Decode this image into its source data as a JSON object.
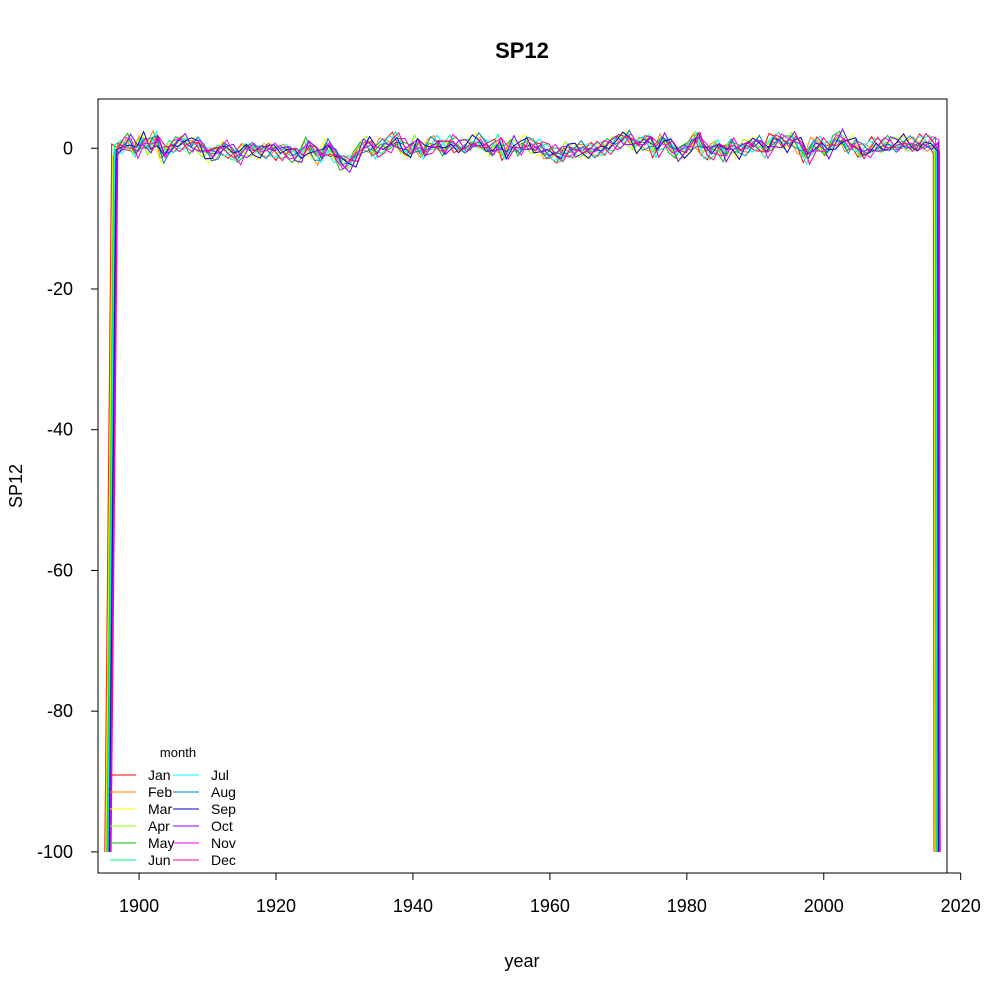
{
  "chart_data": {
    "type": "line",
    "title": "SP12",
    "xlabel": "year",
    "ylabel": "SP12",
    "xlim": [
      1894,
      2018
    ],
    "ylim": [
      -103,
      7
    ],
    "x_ticks": [
      1900,
      1920,
      1940,
      1960,
      1980,
      2000,
      2020
    ],
    "x_tick_labels": [
      "1900",
      "1920",
      "1940",
      "1960",
      "1980",
      "2000",
      "2020"
    ],
    "y_ticks": [
      0,
      -20,
      -40,
      -60,
      -80,
      -100
    ],
    "y_tick_labels": [
      "0",
      "-20",
      "-40",
      "-60",
      "-80",
      "-100"
    ],
    "grid": false,
    "legend": {
      "title": "month",
      "position": "bottom-left",
      "ncol": 2
    },
    "year_start": 1895,
    "year_end": 2017,
    "series_start_value": -100,
    "series": [
      {
        "name": "Jan",
        "color": "#FF0000"
      },
      {
        "name": "Feb",
        "color": "#FF8000"
      },
      {
        "name": "Mar",
        "color": "#FFFF00"
      },
      {
        "name": "Apr",
        "color": "#80FF00"
      },
      {
        "name": "May",
        "color": "#00C000"
      },
      {
        "name": "Jun",
        "color": "#00FF80"
      },
      {
        "name": "Jul",
        "color": "#00FFFF"
      },
      {
        "name": "Aug",
        "color": "#0080C0"
      },
      {
        "name": "Sep",
        "color": "#0000C0"
      },
      {
        "name": "Oct",
        "color": "#8000FF"
      },
      {
        "name": "Nov",
        "color": "#FF00FF"
      },
      {
        "name": "Dec",
        "color": "#FF0080"
      }
    ],
    "base_anomaly": [
      -1.2,
      -0.5,
      0.3,
      1.0,
      -0.4,
      1.2,
      0.2,
      1.5,
      -1.0,
      0.1,
      0.6,
      1.0,
      0.4,
      0.8,
      -0.3,
      -0.9,
      -0.5,
      0.2,
      -0.4,
      -1.1,
      -0.1,
      0.0,
      -0.4,
      -0.2,
      -0.1,
      -0.5,
      -0.3,
      -0.8,
      -1.0,
      0.5,
      -0.5,
      -1.2,
      0.4,
      -0.8,
      -2.0,
      -2.2,
      -1.5,
      0.2,
      0.6,
      -0.4,
      0.3,
      0.5,
      1.2,
      0.2,
      -0.5,
      0.6,
      -0.6,
      0.4,
      0.7,
      -0.2,
      0.8,
      0.3,
      0.1,
      0.6,
      1.0,
      0.4,
      -0.3,
      0.7,
      -0.8,
      0.5,
      -0.2,
      0.8,
      0.2,
      0.1,
      -0.5,
      -0.7,
      -1.0,
      -0.2,
      -0.3,
      -0.1,
      -0.4,
      -0.2,
      0.0,
      0.3,
      0.8,
      1.2,
      1.6,
      0.5,
      0.8,
      1.0,
      -0.2,
      1.2,
      0.5,
      -0.6,
      -0.3,
      0.4,
      1.5,
      -0.2,
      -0.5,
      0.3,
      -0.8,
      0.6,
      -0.4,
      0.2,
      0.5,
      0.8,
      -0.3,
      0.9,
      1.2,
      0.6,
      1.3,
      0.4,
      -1.2,
      0.3,
      0.6,
      -0.4,
      0.8,
      1.5,
      0.2,
      0.6,
      -0.5,
      -0.3,
      0.4,
      0.2,
      0.6,
      0.3,
      0.8,
      0.5,
      0.4,
      0.8,
      0.6,
      0.3,
      -0.4
    ]
  }
}
